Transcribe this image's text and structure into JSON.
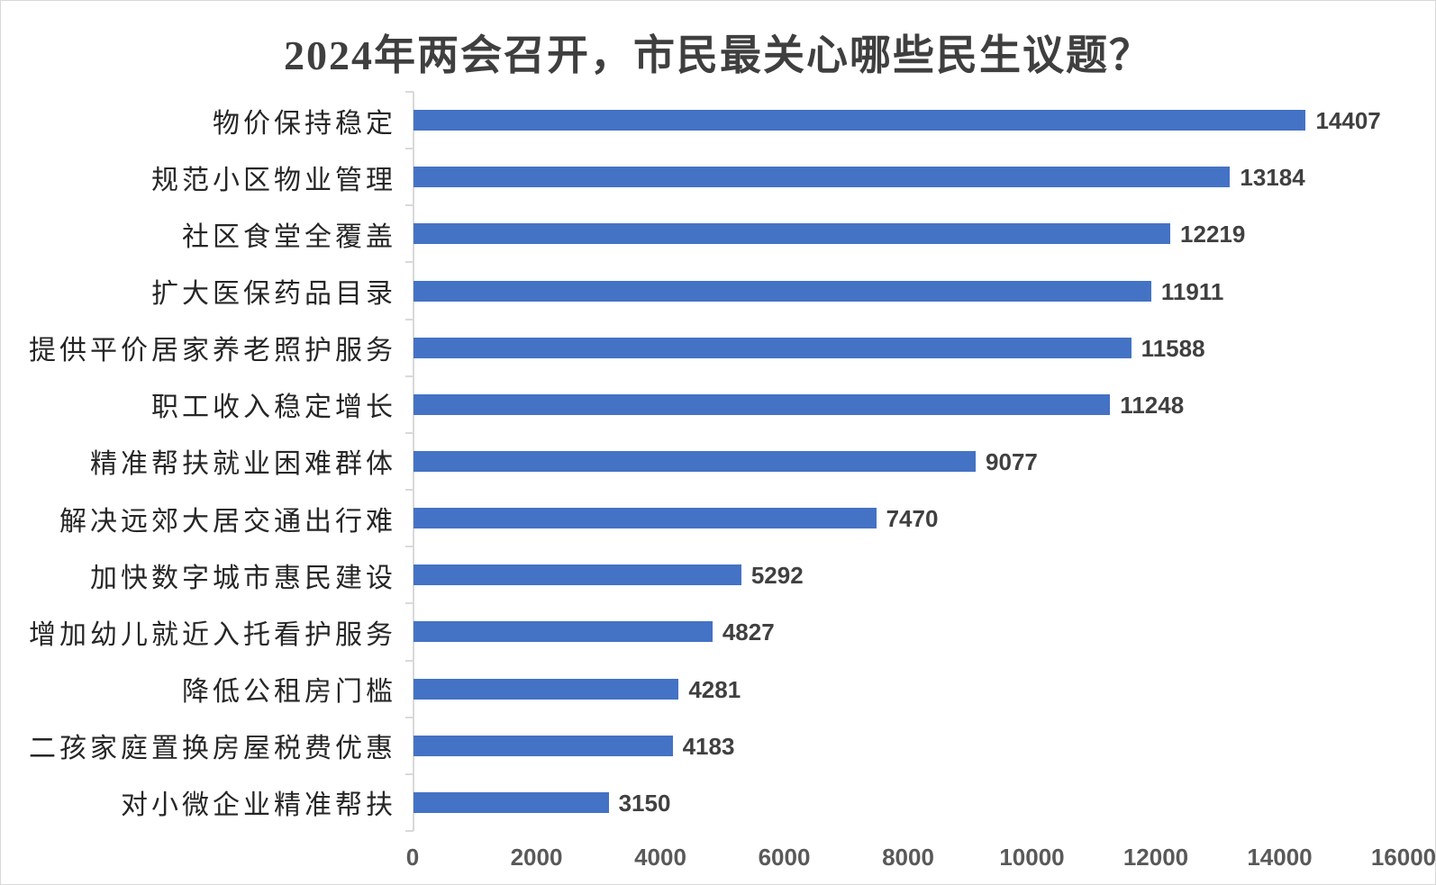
{
  "chart_data": {
    "type": "bar",
    "orientation": "horizontal",
    "title": "2024年两会召开，市民最关心哪些民生议题？",
    "categories": [
      "物价保持稳定",
      "规范小区物业管理",
      "社区食堂全覆盖",
      "扩大医保药品目录",
      "提供平价居家养老照护服务",
      "职工收入稳定增长",
      "精准帮扶就业困难群体",
      "解决远郊大居交通出行难",
      "加快数字城市惠民建设",
      "增加幼儿就近入托看护服务",
      "降低公租房门槛",
      "二孩家庭置换房屋税费优惠",
      "对小微企业精准帮扶"
    ],
    "values": [
      14407,
      13184,
      12219,
      11911,
      11588,
      11248,
      9077,
      7470,
      5292,
      4827,
      4281,
      4183,
      3150
    ],
    "data_labels": [
      "14407",
      "13184",
      "12219",
      "11911",
      "11588",
      "11248",
      "9077",
      "7470",
      "5292",
      "4827",
      "4281",
      "4183",
      "3150"
    ],
    "xlabel": "",
    "ylabel": "",
    "xlim": [
      0,
      16000
    ],
    "x_ticks": [
      0,
      2000,
      4000,
      6000,
      8000,
      10000,
      12000,
      14000,
      16000
    ],
    "x_tick_labels": [
      "0",
      "2000",
      "4000",
      "6000",
      "8000",
      "10000",
      "12000",
      "14000",
      "16000"
    ],
    "grid": false,
    "legend": false
  },
  "colors": {
    "bar": "#4472c4",
    "title_text": "#3f3f3f",
    "category_label": "#262626",
    "value_label": "#404040",
    "axis_label": "#595959",
    "axis_line": "#d9d9d9",
    "border": "#d9d9d9",
    "background": "#ffffff"
  }
}
